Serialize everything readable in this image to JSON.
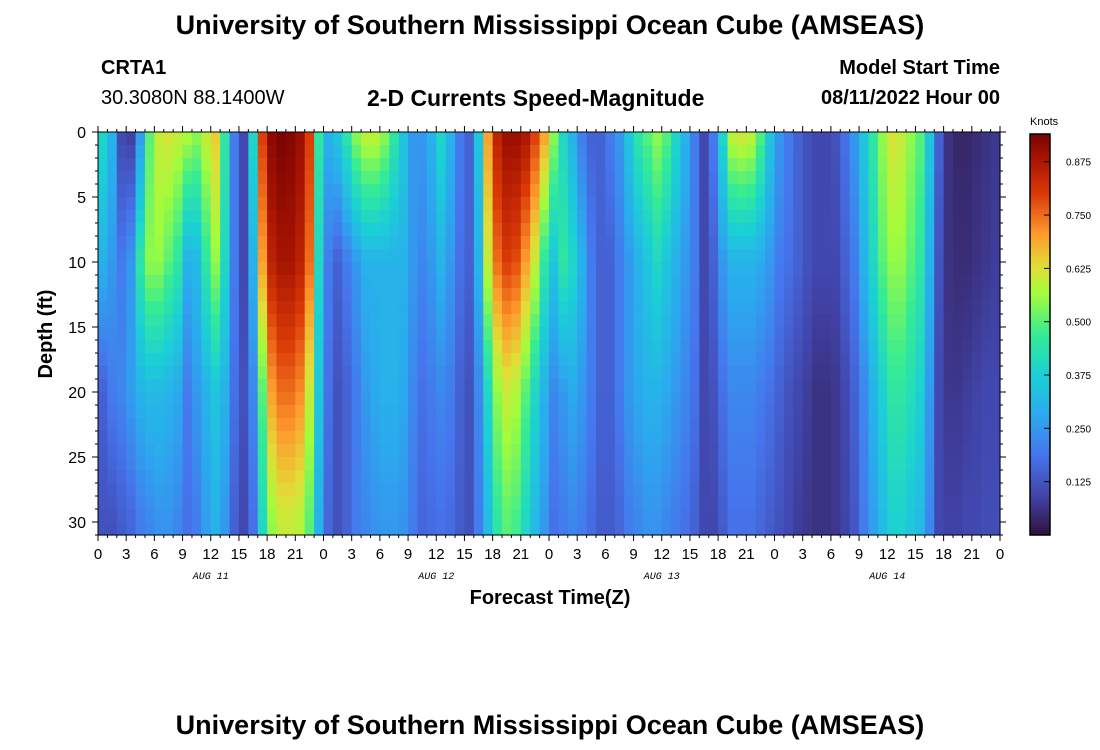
{
  "header": {
    "title": "University of Southern Mississippi Ocean Cube (AMSEAS)",
    "station": "CRTA1",
    "coords": "30.3080N  88.1400W",
    "subtitle": "2-D Currents Speed-Magnitude",
    "model_start_label": "Model Start Time",
    "model_start_value": "08/11/2022 Hour 00"
  },
  "footer": {
    "title": "University of Southern Mississippi Ocean Cube (AMSEAS)"
  },
  "chart_data": {
    "type": "heatmap",
    "title": "2-D Currents Speed-Magnitude",
    "xlabel": "Forecast Time(Z)",
    "ylabel": "Depth (ft)",
    "x_range_hours": [
      0,
      96
    ],
    "y_range_ft": [
      0,
      31
    ],
    "y_inverted": true,
    "x_ticks": [
      "0",
      "3",
      "6",
      "9",
      "12",
      "15",
      "18",
      "21",
      "0",
      "3",
      "6",
      "9",
      "12",
      "15",
      "18",
      "21",
      "0",
      "3",
      "6",
      "9",
      "12",
      "15",
      "18",
      "21",
      "0",
      "3",
      "6",
      "9",
      "12",
      "15",
      "18",
      "21",
      "0"
    ],
    "y_ticks": [
      0,
      5,
      10,
      15,
      20,
      25,
      30
    ],
    "day_labels": [
      {
        "hour": 12,
        "text": "AUG 11"
      },
      {
        "hour": 36,
        "text": "AUG 12"
      },
      {
        "hour": 60,
        "text": "AUG 13"
      },
      {
        "hour": 84,
        "text": "AUG 14"
      }
    ],
    "colorbar": {
      "unit": "Knots",
      "min": 0,
      "max": 0.94,
      "ticks": [
        "0.125",
        "0.250",
        "0.375",
        "0.500",
        "0.625",
        "0.750",
        "0.875"
      ]
    },
    "speed_knots": {
      "note_depths_ft": [
        0,
        10,
        20,
        30
      ],
      "hours": [
        0,
        1,
        2,
        3,
        4,
        5,
        6,
        7,
        8,
        9,
        10,
        11,
        12,
        13,
        14,
        15,
        16,
        17,
        18,
        19,
        20,
        21,
        22,
        23,
        24,
        25,
        26,
        27,
        28,
        29,
        30,
        31,
        32,
        33,
        34,
        35,
        36,
        37,
        38,
        39,
        40,
        41,
        42,
        43,
        44,
        45,
        46,
        47,
        48,
        49,
        50,
        51,
        52,
        53,
        54,
        55,
        56,
        57,
        58,
        59,
        60,
        61,
        62,
        63,
        64,
        65,
        66,
        67,
        68,
        69,
        70,
        71,
        72,
        73,
        74,
        75,
        76,
        77,
        78,
        79,
        80,
        81,
        82,
        83,
        84,
        85,
        86,
        87,
        88,
        89,
        90,
        91,
        92,
        93,
        94,
        95,
        96
      ],
      "surface": [
        0.4,
        0.3,
        0.1,
        0.08,
        0.25,
        0.5,
        0.6,
        0.62,
        0.6,
        0.58,
        0.55,
        0.6,
        0.65,
        0.45,
        0.2,
        0.1,
        0.4,
        0.8,
        0.92,
        0.94,
        0.93,
        0.9,
        0.8,
        0.45,
        0.3,
        0.35,
        0.45,
        0.55,
        0.6,
        0.6,
        0.55,
        0.45,
        0.35,
        0.25,
        0.25,
        0.3,
        0.4,
        0.3,
        0.2,
        0.15,
        0.35,
        0.7,
        0.85,
        0.9,
        0.9,
        0.88,
        0.8,
        0.7,
        0.55,
        0.4,
        0.3,
        0.2,
        0.15,
        0.15,
        0.2,
        0.25,
        0.35,
        0.45,
        0.5,
        0.55,
        0.5,
        0.4,
        0.3,
        0.2,
        0.1,
        0.2,
        0.4,
        0.6,
        0.62,
        0.6,
        0.5,
        0.35,
        0.25,
        0.2,
        0.15,
        0.12,
        0.1,
        0.1,
        0.12,
        0.18,
        0.25,
        0.35,
        0.45,
        0.55,
        0.62,
        0.6,
        0.55,
        0.5,
        0.35,
        0.15,
        0.06,
        0.04,
        0.04,
        0.05,
        0.06,
        0.07,
        0.08
      ],
      "mid": [
        0.3,
        0.25,
        0.2,
        0.25,
        0.45,
        0.55,
        0.55,
        0.5,
        0.45,
        0.3,
        0.32,
        0.45,
        0.55,
        0.4,
        0.2,
        0.1,
        0.3,
        0.7,
        0.85,
        0.88,
        0.88,
        0.85,
        0.75,
        0.4,
        0.2,
        0.15,
        0.2,
        0.25,
        0.3,
        0.3,
        0.3,
        0.3,
        0.3,
        0.25,
        0.22,
        0.25,
        0.3,
        0.25,
        0.18,
        0.15,
        0.3,
        0.6,
        0.75,
        0.8,
        0.78,
        0.7,
        0.6,
        0.45,
        0.35,
        0.45,
        0.4,
        0.3,
        0.2,
        0.15,
        0.15,
        0.2,
        0.25,
        0.3,
        0.35,
        0.4,
        0.35,
        0.3,
        0.25,
        0.2,
        0.1,
        0.15,
        0.25,
        0.3,
        0.3,
        0.3,
        0.28,
        0.25,
        0.2,
        0.18,
        0.15,
        0.12,
        0.1,
        0.1,
        0.1,
        0.15,
        0.2,
        0.3,
        0.4,
        0.5,
        0.55,
        0.55,
        0.5,
        0.45,
        0.3,
        0.12,
        0.06,
        0.05,
        0.05,
        0.06,
        0.07,
        0.08,
        0.08
      ],
      "deep": [
        0.15,
        0.2,
        0.22,
        0.26,
        0.3,
        0.32,
        0.32,
        0.3,
        0.28,
        0.2,
        0.25,
        0.3,
        0.35,
        0.3,
        0.18,
        0.12,
        0.22,
        0.5,
        0.7,
        0.75,
        0.75,
        0.72,
        0.6,
        0.35,
        0.18,
        0.12,
        0.15,
        0.2,
        0.25,
        0.28,
        0.3,
        0.3,
        0.28,
        0.22,
        0.18,
        0.2,
        0.22,
        0.2,
        0.15,
        0.12,
        0.22,
        0.4,
        0.55,
        0.6,
        0.58,
        0.5,
        0.4,
        0.3,
        0.22,
        0.25,
        0.28,
        0.25,
        0.2,
        0.15,
        0.15,
        0.2,
        0.25,
        0.28,
        0.3,
        0.3,
        0.28,
        0.25,
        0.22,
        0.18,
        0.1,
        0.12,
        0.18,
        0.22,
        0.22,
        0.22,
        0.2,
        0.18,
        0.15,
        0.12,
        0.1,
        0.08,
        0.06,
        0.06,
        0.07,
        0.1,
        0.15,
        0.22,
        0.3,
        0.38,
        0.45,
        0.45,
        0.42,
        0.38,
        0.25,
        0.1,
        0.07,
        0.07,
        0.08,
        0.09,
        0.1,
        0.1,
        0.1
      ],
      "bottom": [
        0.12,
        0.12,
        0.14,
        0.16,
        0.2,
        0.22,
        0.24,
        0.24,
        0.22,
        0.18,
        0.2,
        0.26,
        0.3,
        0.25,
        0.15,
        0.1,
        0.18,
        0.4,
        0.55,
        0.6,
        0.6,
        0.58,
        0.5,
        0.3,
        0.16,
        0.12,
        0.15,
        0.2,
        0.22,
        0.24,
        0.25,
        0.25,
        0.24,
        0.2,
        0.16,
        0.17,
        0.18,
        0.17,
        0.14,
        0.12,
        0.2,
        0.32,
        0.45,
        0.5,
        0.48,
        0.4,
        0.32,
        0.25,
        0.18,
        0.2,
        0.22,
        0.2,
        0.17,
        0.14,
        0.14,
        0.16,
        0.2,
        0.22,
        0.24,
        0.24,
        0.22,
        0.2,
        0.18,
        0.15,
        0.1,
        0.1,
        0.14,
        0.18,
        0.18,
        0.18,
        0.16,
        0.14,
        0.12,
        0.1,
        0.08,
        0.07,
        0.06,
        0.06,
        0.07,
        0.09,
        0.13,
        0.2,
        0.26,
        0.32,
        0.38,
        0.38,
        0.35,
        0.32,
        0.22,
        0.1,
        0.09,
        0.09,
        0.1,
        0.1,
        0.11,
        0.11,
        0.11
      ]
    }
  }
}
